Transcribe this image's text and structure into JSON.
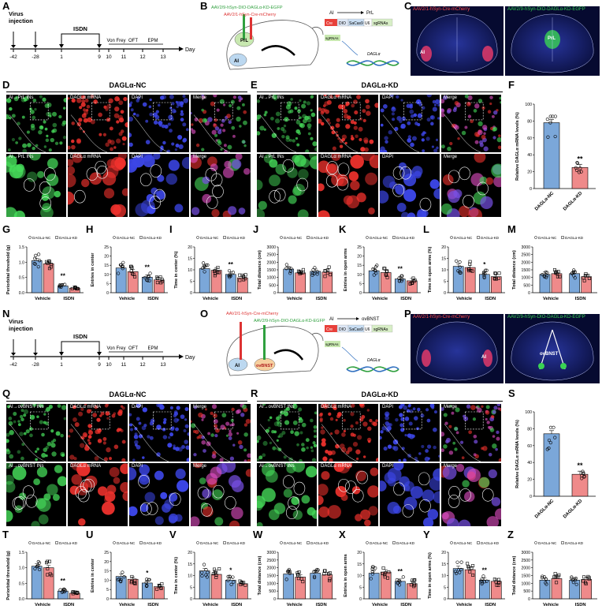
{
  "panels": {
    "A": "A",
    "B": "B",
    "C": "C",
    "D": "D",
    "E": "E",
    "F": "F",
    "G": "G",
    "H": "H",
    "I": "I",
    "J": "J",
    "K": "K",
    "L": "L",
    "M": "M",
    "N": "N",
    "O": "O",
    "P": "P",
    "Q": "Q",
    "R": "R",
    "S": "S",
    "T": "T",
    "U": "U",
    "V": "V",
    "W": "W",
    "X": "X",
    "Y": "Y",
    "Z": "Z"
  },
  "timeline": {
    "virus_injection": "Virus\ninjection",
    "isdn": "ISDN",
    "von_frey": "Von Frey",
    "oft": "OFT",
    "epm": "EPM",
    "day": "Day",
    "ticks": [
      "-42",
      "-28",
      "1",
      "9",
      "10",
      "11",
      "12",
      "13"
    ]
  },
  "schematic_top": {
    "virus1": "AAV2/9-hSyn-DIO-DAGLα-KD-EGFP",
    "virus2": "AAV2/1-hSyn-Cre-mCherry",
    "target": "PrL",
    "source": "AI",
    "arrow_from": "AI",
    "arrow_to": "PrL",
    "construct": [
      "Cre",
      "DIO",
      "SaCas9",
      "U6",
      "sgRNAs"
    ],
    "sgrnas": "sgRNAs",
    "gene": "DAGLα"
  },
  "schematic_bottom": {
    "virus1": "AAV2/1-hSyn-Cre-mCherry",
    "virus2": "AAV2/9-hSyn-DIO-DAGLα-KD-EGFP",
    "target": "ovBNST",
    "source": "AI",
    "arrow_from": "AI",
    "arrow_to": "ovBNST",
    "construct": [
      "Cre",
      "DIO",
      "SaCas9",
      "U6",
      "sgRNAs"
    ],
    "sgrnas": "sgRNAs",
    "gene": "DAGLα"
  },
  "brain_C": {
    "left": "AAV2/1-hSyn-Cre-mCherry",
    "right": "AAV2/9-hSyn-DIO-DAGLα-KD-EGFP",
    "ai": "AI",
    "prl": "PrL"
  },
  "brain_P": {
    "left": "AAV2/1-hSyn-Cre-mCherry",
    "right": "AAV2/9-hSyn-DIO-DAGLα-KD-EGFP",
    "ai": "AI",
    "ovbnst": "ovBNST"
  },
  "micro_titles": {
    "D": "DAGLα-NC",
    "E": "DAGLα-KD",
    "Q": "DAGLα-NC",
    "R": "DAGLα-KD"
  },
  "micro_labels_top": [
    "AI→PrL INs",
    "DAGLα mRNA",
    "DAPI",
    "Merge"
  ],
  "micro_labels_bottom": [
    "AI→ovBNST INs",
    "DAGLα mRNA",
    "DAPI",
    "Merge"
  ],
  "colors": {
    "nc": "#7ba7d9",
    "kd": "#ef8a8a",
    "green": "#39d353",
    "red": "#e8312f",
    "blue": "#2a38c8"
  },
  "chart_data": [
    {
      "id": "F",
      "type": "bar",
      "categories": [
        "DAGLα-NC",
        "DAGLα-KD"
      ],
      "values": [
        78,
        25
      ],
      "ylabel": "Relative DAGLα mRNA levels (%)",
      "ylim": [
        0,
        100
      ],
      "yticks": [
        "0",
        "20",
        "40",
        "60",
        "80",
        "100"
      ],
      "sig": "**"
    },
    {
      "id": "S",
      "type": "bar",
      "categories": [
        "DAGLα-NC",
        "DAGLα-KD"
      ],
      "values": [
        74,
        26
      ],
      "ylabel": "Relative DAGLα mRNA levels (%)",
      "ylim": [
        0,
        100
      ],
      "yticks": [
        "0",
        "20",
        "40",
        "60",
        "80",
        "100"
      ],
      "sig": "**"
    },
    {
      "id": "G",
      "type": "bar",
      "categories": [
        "Vehicle",
        "ISDN"
      ],
      "series": [
        {
          "name": "DAGLα-NC",
          "values": [
            1.05,
            0.22
          ]
        },
        {
          "name": "DAGLα-KD",
          "values": [
            0.95,
            0.15
          ]
        }
      ],
      "ylabel": "Periorbital threshold (g)",
      "ylim": [
        0,
        1.5
      ],
      "yticks": [
        "0.0",
        "0.5",
        "1.0",
        "1.5"
      ],
      "sig": "**"
    },
    {
      "id": "H",
      "type": "bar",
      "categories": [
        "Vehicle",
        "ISDN"
      ],
      "series": [
        {
          "name": "DAGLα-NC",
          "values": [
            13.5,
            8.5
          ]
        },
        {
          "name": "DAGLα-KD",
          "values": [
            11.5,
            7
          ]
        }
      ],
      "ylabel": "Entries in center",
      "ylim": [
        0,
        25
      ],
      "yticks": [
        "0",
        "5",
        "10",
        "15",
        "20",
        "25"
      ],
      "sig": "**"
    },
    {
      "id": "I",
      "type": "bar",
      "categories": [
        "Vehicle",
        "ISDN"
      ],
      "series": [
        {
          "name": "DAGLα-NC",
          "values": [
            10.5,
            8
          ]
        },
        {
          "name": "DAGLα-KD",
          "values": [
            9.8,
            6.5
          ]
        }
      ],
      "ylabel": "Time in center (%)",
      "ylim": [
        0,
        20
      ],
      "yticks": [
        "0",
        "5",
        "10",
        "15",
        "20"
      ],
      "sig": "**"
    },
    {
      "id": "J",
      "type": "bar",
      "categories": [
        "Vehicle",
        "ISDN"
      ],
      "series": [
        {
          "name": "DAGLα-NC",
          "values": [
            1550,
            1400
          ]
        },
        {
          "name": "DAGLα-KD",
          "values": [
            1300,
            1350
          ]
        }
      ],
      "ylabel": "Total distance (cm)",
      "ylim": [
        0,
        3000
      ],
      "yticks": [
        "0",
        "500",
        "1000",
        "1500",
        "2000",
        "2500",
        "3000"
      ]
    },
    {
      "id": "K",
      "type": "bar",
      "categories": [
        "Vehicle",
        "ISDN"
      ],
      "series": [
        {
          "name": "DAGLα-NC",
          "values": [
            12,
            7.5
          ]
        },
        {
          "name": "DAGLα-KD",
          "values": [
            11,
            6.5
          ]
        }
      ],
      "ylabel": "Entries in open arms",
      "ylim": [
        0,
        25
      ],
      "yticks": [
        "0",
        "5",
        "10",
        "15",
        "20",
        "25"
      ],
      "sig": "**"
    },
    {
      "id": "L",
      "type": "bar",
      "categories": [
        "Vehicle",
        "ISDN"
      ],
      "series": [
        {
          "name": "DAGLα-NC",
          "values": [
            11.5,
            8
          ]
        },
        {
          "name": "DAGLα-KD",
          "values": [
            11,
            7
          ]
        }
      ],
      "ylabel": "Time in open arms (%)",
      "ylim": [
        0,
        20
      ],
      "yticks": [
        "0",
        "5",
        "10",
        "15",
        "20"
      ],
      "sig": "*"
    },
    {
      "id": "M",
      "type": "bar",
      "categories": [
        "Vehicle",
        "ISDN"
      ],
      "series": [
        {
          "name": "DAGLα-NC",
          "values": [
            1200,
            1250
          ]
        },
        {
          "name": "DAGLα-KD",
          "values": [
            1250,
            1050
          ]
        }
      ],
      "ylabel": "Total distance (cm)",
      "ylim": [
        0,
        3000
      ],
      "yticks": [
        "0",
        "500",
        "1000",
        "1500",
        "2000",
        "2500",
        "3000"
      ]
    },
    {
      "id": "T",
      "type": "bar",
      "categories": [
        "Vehicle",
        "ISDN"
      ],
      "series": [
        {
          "name": "DAGLα-NC",
          "values": [
            1.05,
            0.25
          ]
        },
        {
          "name": "DAGLα-KD",
          "values": [
            1.0,
            0.18
          ]
        }
      ],
      "ylabel": "Periorbital threshold (g)",
      "ylim": [
        0,
        1.5
      ],
      "yticks": [
        "0.0",
        "0.5",
        "1.0",
        "1.5"
      ],
      "sig": "**"
    },
    {
      "id": "U",
      "type": "bar",
      "categories": [
        "Vehicle",
        "ISDN"
      ],
      "series": [
        {
          "name": "DAGLα-NC",
          "values": [
            12,
            8.5
          ]
        },
        {
          "name": "DAGLα-KD",
          "values": [
            10.5,
            6.5
          ]
        }
      ],
      "ylabel": "Entries in center",
      "ylim": [
        0,
        25
      ],
      "yticks": [
        "0",
        "5",
        "10",
        "15",
        "20",
        "25"
      ],
      "sig": "*"
    },
    {
      "id": "V",
      "type": "bar",
      "categories": [
        "Vehicle",
        "ISDN"
      ],
      "series": [
        {
          "name": "DAGLα-NC",
          "values": [
            12,
            8
          ]
        },
        {
          "name": "DAGLα-KD",
          "values": [
            10.5,
            6.5
          ]
        }
      ],
      "ylabel": "Time in center (%)",
      "ylim": [
        0,
        20
      ],
      "yticks": [
        "0",
        "5",
        "10",
        "15",
        "20"
      ],
      "sig": "*"
    },
    {
      "id": "W",
      "type": "bar",
      "categories": [
        "Vehicle",
        "ISDN"
      ],
      "series": [
        {
          "name": "DAGLα-NC",
          "values": [
            1600,
            1650
          ]
        },
        {
          "name": "DAGLα-KD",
          "values": [
            1400,
            1550
          ]
        }
      ],
      "ylabel": "Total distance (cm)",
      "ylim": [
        0,
        3000
      ],
      "yticks": [
        "0",
        "500",
        "1000",
        "1500",
        "2000",
        "2500",
        "3000"
      ]
    },
    {
      "id": "X",
      "type": "bar",
      "categories": [
        "Vehicle",
        "ISDN"
      ],
      "series": [
        {
          "name": "DAGLα-NC",
          "values": [
            11,
            7.5
          ]
        },
        {
          "name": "DAGLα-KD",
          "values": [
            11.5,
            6.5
          ]
        }
      ],
      "ylabel": "Entries in open arms",
      "ylim": [
        0,
        20
      ],
      "yticks": [
        "0",
        "5",
        "10",
        "15",
        "20"
      ],
      "sig": "**"
    },
    {
      "id": "Y",
      "type": "bar",
      "categories": [
        "Vehicle",
        "ISDN"
      ],
      "series": [
        {
          "name": "DAGLα-NC",
          "values": [
            13,
            8
          ]
        },
        {
          "name": "DAGLα-KD",
          "values": [
            12.5,
            7.5
          ]
        }
      ],
      "ylabel": "Time in open arms (%)",
      "ylim": [
        0,
        20
      ],
      "yticks": [
        "0",
        "5",
        "10",
        "15",
        "20"
      ],
      "sig": "**"
    },
    {
      "id": "Z",
      "type": "bar",
      "categories": [
        "Vehicle",
        "ISDN"
      ],
      "series": [
        {
          "name": "DAGLα-NC",
          "values": [
            1200,
            1200
          ]
        },
        {
          "name": "DAGLα-KD",
          "values": [
            1300,
            1250
          ]
        }
      ],
      "ylabel": "Total distance (cm)",
      "ylim": [
        0,
        3000
      ],
      "yticks": [
        "0",
        "500",
        "1000",
        "1500",
        "2000",
        "2500",
        "3000"
      ]
    }
  ]
}
